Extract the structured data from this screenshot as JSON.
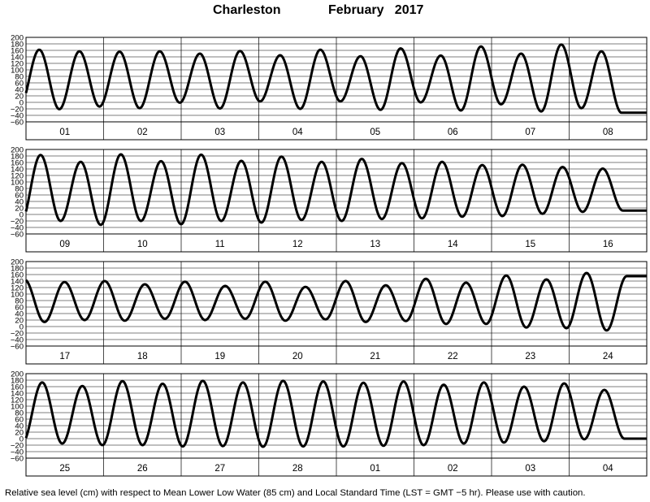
{
  "title": {
    "station": "Charleston",
    "period": "February   2017"
  },
  "caption": "Relative sea level (cm) with respect to Mean Lower Low Water (85 cm) and Local Standard Time (LST = GMT −5 hr). Please use with caution.",
  "chart_data": {
    "type": "line",
    "ylabel": "Relative sea level (cm)",
    "ylim": [
      -60,
      200
    ],
    "yticks": [
      200,
      180,
      160,
      140,
      120,
      100,
      80,
      60,
      40,
      20,
      0,
      -20,
      -40,
      -60
    ],
    "ytick_labels": [
      "200",
      "180",
      "160",
      "140",
      "120",
      "100",
      "80",
      "60",
      "40",
      "20",
      "0",
      "−20",
      "−40",
      "−60"
    ],
    "grid": true,
    "period_hours": 12.42,
    "panels": [
      {
        "day_labels": [
          "01",
          "02",
          "03",
          "04",
          "05",
          "06",
          "07",
          "08"
        ],
        "first_high_hour": 4.1,
        "highs": [
          162,
          157,
          156,
          157,
          150,
          158,
          145,
          162,
          142,
          166,
          144,
          172,
          150,
          178,
          157
        ],
        "lows": [
          -18,
          -21,
          -13,
          -18,
          -1,
          -19,
          3,
          -20,
          3,
          -23,
          0,
          -25,
          -6,
          -28,
          -18,
          -32
        ]
      },
      {
        "day_labels": [
          "09",
          "10",
          "11",
          "12",
          "13",
          "14",
          "15",
          "16"
        ],
        "first_high_hour": 4.5,
        "highs": [
          183,
          162,
          185,
          164,
          184,
          165,
          178,
          162,
          171,
          158,
          162,
          152,
          153,
          146,
          141
        ],
        "lows": [
          -28,
          -20,
          -32,
          -20,
          -30,
          -20,
          -25,
          -17,
          -20,
          -14,
          -12,
          -7,
          -5,
          2,
          8,
          12
        ]
      },
      {
        "day_labels": [
          "17",
          "18",
          "19",
          "20",
          "21",
          "22",
          "23",
          "24"
        ],
        "first_high_hour": -0.5,
        "highs": [
          145,
          137,
          140,
          130,
          138,
          125,
          138,
          122,
          140,
          127,
          147,
          135,
          157,
          145,
          165,
          155
        ],
        "lows": [
          15,
          14,
          20,
          18,
          24,
          20,
          24,
          18,
          22,
          14,
          17,
          8,
          8,
          -3,
          -5,
          -12
        ]
      },
      {
        "day_labels": [
          "25",
          "26",
          "27",
          "28",
          "01",
          "02",
          "03",
          "04"
        ],
        "first_high_hour": 5.0,
        "highs": [
          173,
          162,
          177,
          169,
          178,
          173,
          178,
          176,
          172,
          176,
          166,
          173,
          160,
          170,
          150
        ],
        "lows": [
          -15,
          -15,
          -20,
          -20,
          -24,
          -23,
          -25,
          -24,
          -24,
          -22,
          -20,
          -15,
          -12,
          -8,
          -2,
          0
        ]
      }
    ]
  }
}
